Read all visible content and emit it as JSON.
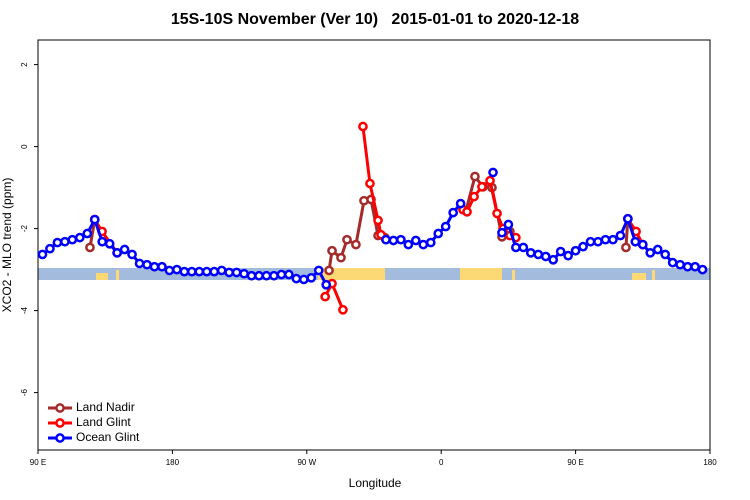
{
  "chart_data": {
    "type": "line",
    "title": "15S-10S November (Ver 10)   2015-01-01 to 2020-12-18",
    "x_label": "Longitude",
    "y_label": "XCO2 - MLO trend (ppm)",
    "xlim": [
      90,
      540
    ],
    "ylim": [
      -7.4,
      2.6
    ],
    "xticks": [
      {
        "value": 90,
        "label": "90 E"
      },
      180,
      {
        "value": 270,
        "label": "90 W"
      },
      {
        "value": 360,
        "label": "0"
      },
      {
        "value": 450,
        "label": "90 E"
      },
      {
        "value": 540,
        "label": "180"
      }
    ],
    "yticks": [
      -6,
      -4,
      -2,
      0,
      2
    ],
    "legend": "bottom-left",
    "series": [
      {
        "name": "Land Nadir",
        "color": "#a52a2a",
        "x": [
          124.8,
          128,
          null,
          284.9,
          286.9,
          292.9,
          296.9,
          302.9,
          308.3,
          313,
          317.7,
          322.3,
          null,
          376.6,
          382.6,
          388,
          394,
          400.7,
          406,
          null,
          483.7,
          485
        ],
        "values": [
          -2.46,
          -1.78,
          null,
          -3.02,
          -2.54,
          -2.71,
          -2.27,
          -2.39,
          -1.32,
          -1.29,
          -2.17,
          -2.22,
          null,
          -1.56,
          -0.73,
          -0.98,
          -1.0,
          -2.2,
          -2.07,
          null,
          -2.46,
          -1.76
        ]
      },
      {
        "name": "Land Glint",
        "color": "#ff0000",
        "x": [
          128,
          132.9,
          143,
          null,
          282.3,
          286.9,
          294.2,
          null,
          307.6,
          312.3,
          317.7,
          319.7,
          null,
          374.6,
          377.3,
          382,
          387.3,
          392.7,
          397.4,
          401.4,
          406,
          410,
          null,
          485,
          490.5,
          495
        ],
        "values": [
          -1.78,
          -2.07,
          -2.59,
          null,
          -3.66,
          -3.34,
          -3.98,
          null,
          0.49,
          -0.9,
          -1.8,
          -2.15,
          null,
          -1.54,
          -1.59,
          -1.22,
          -0.98,
          -0.83,
          -1.63,
          -2.0,
          -2.17,
          -2.22,
          null,
          -1.76,
          -2.07,
          -2.39
        ]
      },
      {
        "name": "Ocean Glint",
        "color": "#0000ff",
        "x": [
          93,
          98,
          103,
          108,
          113,
          118,
          123,
          128,
          133,
          138,
          143,
          148,
          153,
          158,
          163,
          168,
          173,
          178,
          183,
          188,
          193,
          198,
          203,
          208,
          213,
          218,
          223,
          228,
          233,
          238,
          243,
          248,
          253,
          258,
          263,
          268,
          273,
          278,
          283,
          null,
          323,
          328,
          333,
          338,
          343,
          348,
          353,
          358,
          363,
          368,
          373,
          null,
          394.7,
          null,
          400.7,
          405,
          410,
          415,
          420,
          425,
          430,
          435,
          440,
          445,
          450,
          455,
          460,
          465,
          470,
          475,
          480,
          485,
          490,
          495,
          500,
          505,
          510,
          515,
          520,
          525,
          530,
          535
        ],
        "values": [
          -2.63,
          -2.49,
          -2.34,
          -2.32,
          -2.27,
          -2.22,
          -2.12,
          -1.78,
          -2.32,
          -2.37,
          -2.59,
          -2.51,
          -2.63,
          -2.85,
          -2.88,
          -2.93,
          -2.93,
          -3.02,
          -3.0,
          -3.05,
          -3.05,
          -3.05,
          -3.05,
          -3.05,
          -3.02,
          -3.07,
          -3.07,
          -3.1,
          -3.15,
          -3.15,
          -3.15,
          -3.15,
          -3.12,
          -3.12,
          -3.22,
          -3.24,
          -3.2,
          -3.02,
          -3.37,
          null,
          -2.27,
          -2.29,
          -2.27,
          -2.39,
          -2.29,
          -2.39,
          -2.34,
          -2.12,
          -1.95,
          -1.61,
          -1.39,
          null,
          -0.63,
          null,
          -2.1,
          -1.9,
          -2.46,
          -2.46,
          -2.59,
          -2.63,
          -2.68,
          -2.76,
          -2.56,
          -2.66,
          -2.54,
          -2.44,
          -2.32,
          -2.32,
          -2.27,
          -2.27,
          -2.17,
          -1.76,
          -2.32,
          -2.39,
          -2.59,
          -2.51,
          -2.63,
          -2.83,
          -2.88,
          -2.93,
          -2.93,
          -3.0
        ]
      }
    ]
  }
}
